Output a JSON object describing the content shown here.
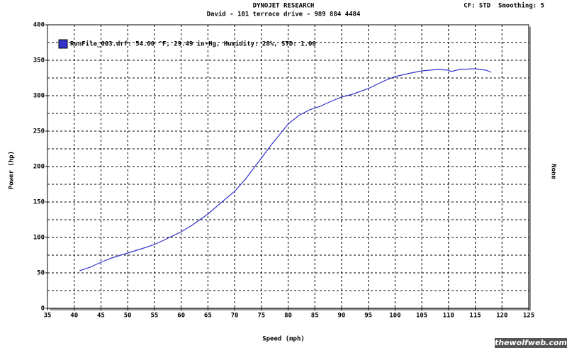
{
  "chart_data": {
    "type": "line",
    "title": "DYNOJET RESEARCH",
    "subtitle": "David - 101 terrace drive - 989 884 4484",
    "corner_note": "CF: STD  Smoothing: 5",
    "x_label": "Speed (mph)",
    "y_label": "Power (hp)",
    "y2_label": "None",
    "watermark": "thewolfweb.com",
    "xlim": [
      35,
      125
    ],
    "xticks": [
      35,
      40,
      45,
      50,
      55,
      60,
      65,
      70,
      75,
      80,
      85,
      90,
      95,
      100,
      105,
      110,
      115,
      120,
      125
    ],
    "ylim": [
      0,
      400
    ],
    "yticks": [
      0,
      50,
      100,
      150,
      200,
      250,
      300,
      350,
      400
    ],
    "minor_yticks": [
      25,
      75,
      125,
      175,
      225,
      275,
      325,
      375
    ],
    "grid": true,
    "series": [
      {
        "name": "RunFile_003.drf: 54.00 °F, 29.49 in-Hg, Humidity: 28%, STD: 1.00",
        "color": "#3333cc",
        "x": [
          41,
          43,
          45,
          47,
          50,
          53,
          55,
          57,
          60,
          62,
          65,
          67,
          70,
          72,
          75,
          77,
          80,
          82,
          84,
          86,
          88,
          90,
          92,
          95,
          98,
          100,
          103,
          105,
          108,
          110,
          110.5,
          112,
          115,
          117,
          118
        ],
        "values": [
          53,
          58,
          65,
          71,
          78,
          85,
          90,
          97,
          108,
          117,
          133,
          146,
          165,
          182,
          212,
          232,
          260,
          272,
          280,
          285,
          292,
          298,
          302,
          310,
          321,
          327,
          332,
          335,
          337,
          336,
          334,
          337,
          338,
          336,
          333
        ]
      }
    ]
  }
}
